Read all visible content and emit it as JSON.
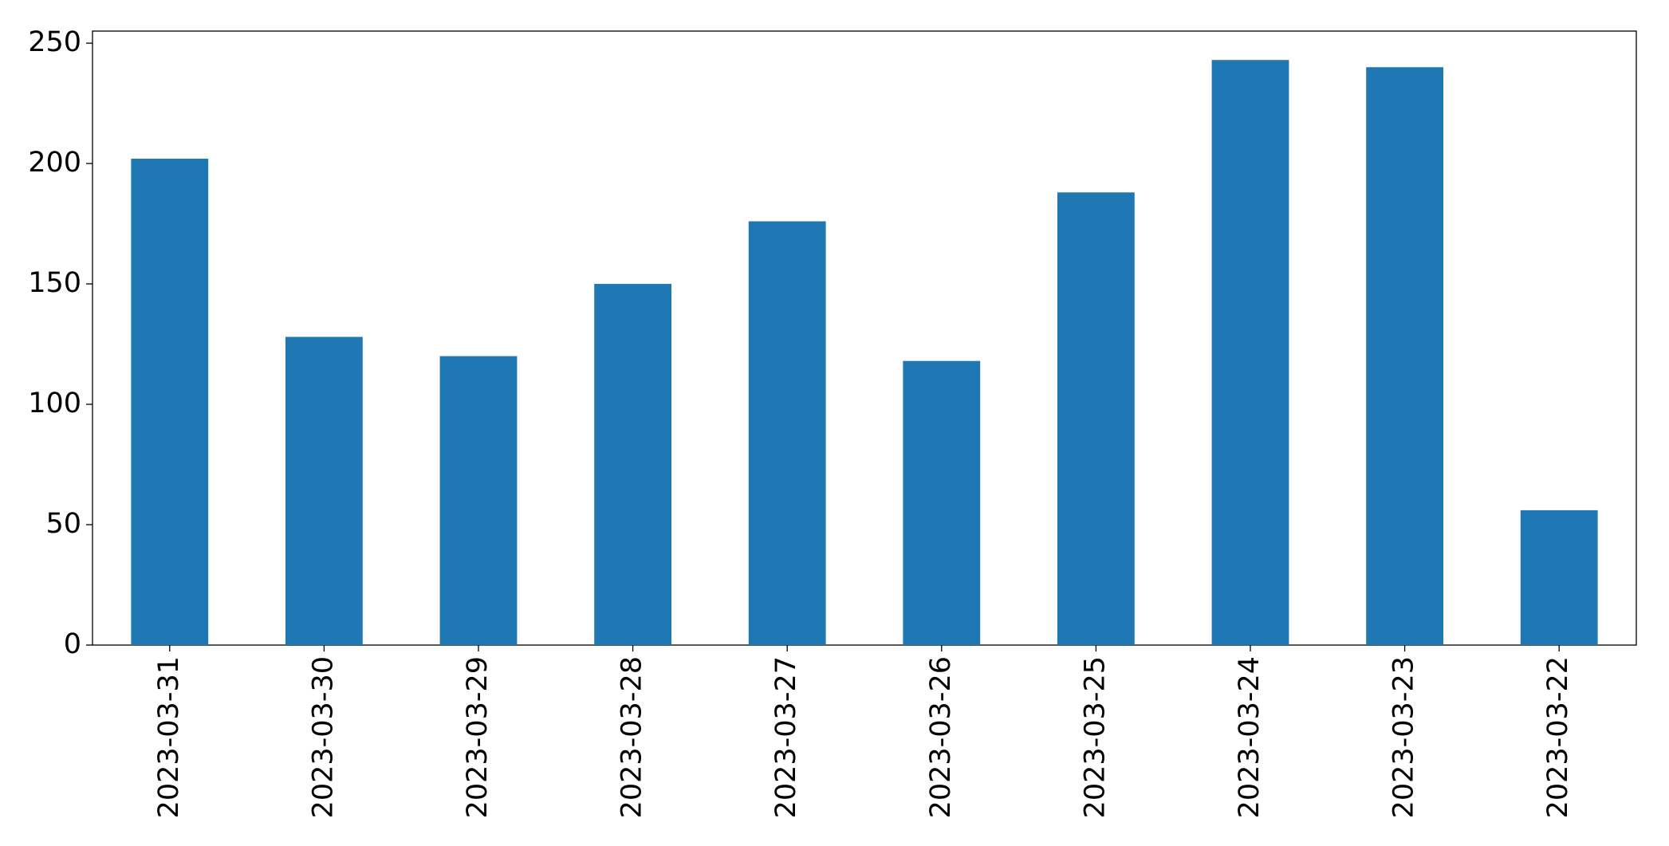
{
  "chart_data": {
    "type": "bar",
    "categories": [
      "2023-03-31",
      "2023-03-30",
      "2023-03-29",
      "2023-03-28",
      "2023-03-27",
      "2023-03-26",
      "2023-03-25",
      "2023-03-24",
      "2023-03-23",
      "2023-03-22"
    ],
    "values": [
      202,
      128,
      120,
      150,
      176,
      118,
      188,
      243,
      240,
      56
    ],
    "color": "#1f77b4",
    "ylim": [
      0,
      255
    ],
    "yticks": [
      0,
      50,
      100,
      150,
      200,
      250
    ],
    "grid": false
  }
}
